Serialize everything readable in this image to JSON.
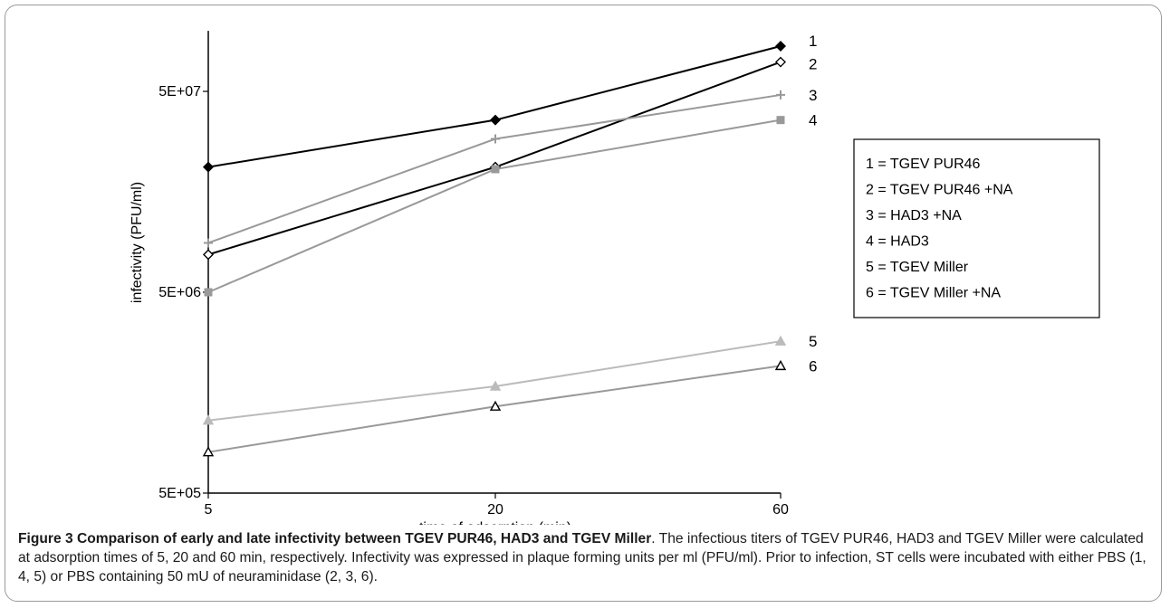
{
  "chart_data": {
    "type": "line",
    "xlabel": "time of adsorption (min)",
    "ylabel": "infectivity (PFU/ml)",
    "x": [
      5,
      20,
      60
    ],
    "x_tick_labels": [
      "5",
      "20",
      "60"
    ],
    "y_scale": "log",
    "ylim": [
      500000,
      100000000
    ],
    "y_ticks": [
      500000,
      5000000,
      50000000
    ],
    "y_tick_labels": [
      "5E+05",
      "5E+06",
      "5E+07"
    ],
    "grid": false,
    "legend_position": "right",
    "legend_entries": [
      "1 = TGEV PUR46",
      "2 = TGEV PUR46 +NA",
      "3 = HAD3 +NA",
      "4 = HAD3",
      "5 = TGEV Miller",
      "6 = TGEV Miller +NA"
    ],
    "series": [
      {
        "label": "1",
        "values": [
          21000000,
          36000000,
          84000000
        ],
        "color": "#000000",
        "marker": "diamond-filled"
      },
      {
        "label": "2",
        "values": [
          7700000,
          21000000,
          70000000
        ],
        "color": "#000000",
        "marker": "diamond-open"
      },
      {
        "label": "3",
        "values": [
          8800000,
          29000000,
          48000000
        ],
        "color": "#999999",
        "marker": "plus"
      },
      {
        "label": "4",
        "values": [
          5000000,
          20500000,
          36000000
        ],
        "color": "#999999",
        "marker": "square"
      },
      {
        "label": "5",
        "values": [
          1150000,
          1700000,
          2850000
        ],
        "color": "#bbbbbb",
        "marker": "triangle-filled"
      },
      {
        "label": "6",
        "values": [
          800000,
          1350000,
          2150000
        ],
        "color": "#999999",
        "marker": "triangle-open"
      }
    ]
  },
  "caption": {
    "title": "Figure 3 Comparison of early and late infectivity between TGEV PUR46, HAD3 and TGEV Miller",
    "text": ". The infectious titers of TGEV PUR46, HAD3 and TGEV Miller were calculated at adsorption times of 5, 20 and 60 min, respectively. Infectivity was expressed in plaque forming units per ml (PFU/ml). Prior to infection, ST cells were incubated with either PBS (1, 4, 5) or PBS containing 50 mU of neuraminidase (2, 3, 6)."
  }
}
